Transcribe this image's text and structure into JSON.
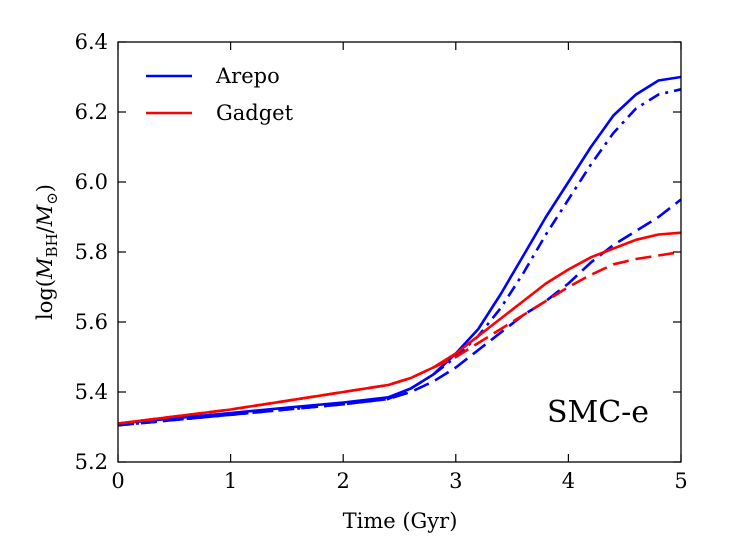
{
  "chart_data": {
    "type": "line",
    "xlabel": "Time (Gyr)",
    "ylabel": {
      "prefix": "log(",
      "m": "M",
      "sub": "BH",
      "slash": "/",
      "m2": "M",
      "sun": "⊙",
      "suffix": ")"
    },
    "xlim": [
      0,
      5
    ],
    "ylim": [
      5.2,
      6.4
    ],
    "xticks": [
      0,
      1,
      2,
      3,
      4,
      5
    ],
    "yticks": [
      5.2,
      5.4,
      5.6,
      5.8,
      6.0,
      6.2,
      6.4
    ],
    "xtick_labels": [
      "0",
      "1",
      "2",
      "3",
      "4",
      "5"
    ],
    "ytick_labels": [
      "5.2",
      "5.4",
      "5.6",
      "5.8",
      "6.0",
      "6.2",
      "6.4"
    ],
    "grid": false,
    "legend_position": "top-left",
    "legend": [
      {
        "label": "Arepo",
        "color": "#0000ff"
      },
      {
        "label": "Gadget",
        "color": "#ff0000"
      }
    ],
    "annotation": "SMC-e",
    "series": [
      {
        "code": "Arepo",
        "style": "solid",
        "color": "#0000ff",
        "x": [
          0,
          0.5,
          1.0,
          1.5,
          2.0,
          2.4,
          2.6,
          2.8,
          3.0,
          3.2,
          3.4,
          3.6,
          3.8,
          4.0,
          4.2,
          4.4,
          4.6,
          4.8,
          5.0
        ],
        "y": [
          5.31,
          5.325,
          5.34,
          5.355,
          5.37,
          5.385,
          5.41,
          5.45,
          5.51,
          5.58,
          5.68,
          5.79,
          5.9,
          6.0,
          6.1,
          6.19,
          6.25,
          6.29,
          6.3
        ]
      },
      {
        "code": "Arepo",
        "style": "dashdot",
        "color": "#0000ff",
        "x": [
          0,
          0.5,
          1.0,
          1.5,
          2.0,
          2.4,
          2.6,
          2.8,
          3.0,
          3.2,
          3.4,
          3.6,
          3.8,
          4.0,
          4.2,
          4.4,
          4.6,
          4.8,
          5.0
        ],
        "y": [
          5.305,
          5.32,
          5.335,
          5.35,
          5.365,
          5.38,
          5.41,
          5.45,
          5.5,
          5.56,
          5.64,
          5.74,
          5.85,
          5.95,
          6.05,
          6.14,
          6.21,
          6.25,
          6.265
        ]
      },
      {
        "code": "Arepo",
        "style": "dashed",
        "color": "#0000ff",
        "x": [
          0,
          0.5,
          1.0,
          1.5,
          2.0,
          2.4,
          2.6,
          2.8,
          3.0,
          3.2,
          3.4,
          3.6,
          3.8,
          4.0,
          4.2,
          4.4,
          4.6,
          4.8,
          5.0
        ],
        "y": [
          5.305,
          5.32,
          5.335,
          5.35,
          5.365,
          5.38,
          5.4,
          5.43,
          5.47,
          5.52,
          5.57,
          5.62,
          5.66,
          5.71,
          5.77,
          5.82,
          5.86,
          5.9,
          5.95
        ]
      },
      {
        "code": "Gadget",
        "style": "solid",
        "color": "#ff0000",
        "x": [
          0,
          0.5,
          1.0,
          1.5,
          2.0,
          2.4,
          2.6,
          2.8,
          3.0,
          3.2,
          3.4,
          3.6,
          3.8,
          4.0,
          4.2,
          4.4,
          4.6,
          4.8,
          5.0
        ],
        "y": [
          5.31,
          5.33,
          5.35,
          5.375,
          5.4,
          5.42,
          5.44,
          5.47,
          5.51,
          5.56,
          5.61,
          5.66,
          5.71,
          5.75,
          5.785,
          5.81,
          5.835,
          5.85,
          5.855
        ]
      },
      {
        "code": "Gadget",
        "style": "dashed",
        "color": "#ff0000",
        "x": [
          0,
          0.5,
          1.0,
          1.5,
          2.0,
          2.4,
          2.6,
          2.8,
          3.0,
          3.2,
          3.4,
          3.6,
          3.8,
          4.0,
          4.2,
          4.4,
          4.6,
          4.8,
          5.0
        ],
        "y": [
          5.31,
          5.33,
          5.35,
          5.375,
          5.4,
          5.42,
          5.44,
          5.47,
          5.5,
          5.54,
          5.58,
          5.62,
          5.66,
          5.7,
          5.735,
          5.765,
          5.78,
          5.79,
          5.8
        ]
      }
    ]
  }
}
